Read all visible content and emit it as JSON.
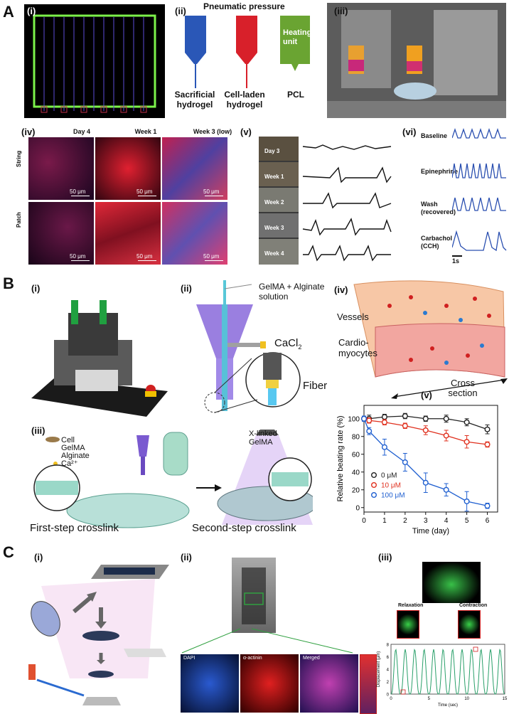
{
  "panel_A": {
    "letter": "A",
    "sub_i": "(i)",
    "sub_ii": "(ii)",
    "sub_iii": "(iii)",
    "sub_iv": "(iv)",
    "sub_v": "(v)",
    "sub_vi": "(vi)",
    "ii_title": "Pneumatic pressure",
    "ii_nozzles": [
      "Sacrificial hydrogel",
      "Cell-laden hydrogel"
    ],
    "ii_heating": "Heating unit",
    "ii_pcl": "PCL",
    "iv_cols": [
      "Day 4",
      "Week 1",
      "Week 3 (low)"
    ],
    "iv_rows": [
      "String",
      "Patch"
    ],
    "iv_scale": "50 μm",
    "v_rows": [
      "Day 3",
      "Week 1",
      "Week 2",
      "Week 3",
      "Week 4"
    ],
    "vi_rows": [
      "Baseline",
      "Epinephrine",
      "Wash (recovered)",
      "Carbachol (CCH)"
    ],
    "vi_scale": "1s"
  },
  "panel_B": {
    "letter": "B",
    "sub_i": "(i)",
    "sub_ii": "(ii)",
    "sub_iii": "(iii)",
    "sub_iv": "(iv)",
    "sub_v": "(v)",
    "ii_solution": "GelMA + Alginate solution",
    "ii_cacl2": "CaCl",
    "ii_cacl2_sub": "2",
    "ii_fiber": "Fiber",
    "iii_legend": [
      "Cell",
      "GelMA",
      "Alginate",
      "Ca²⁺"
    ],
    "iii_xlinked": "X-linked GelMA",
    "iii_step1": "First-step crosslink",
    "iii_step2": "Second-step crosslink",
    "iv_vessels": "Vessels",
    "iv_cardio": "Cardio- myocytes",
    "iv_cross": "Cross section"
  },
  "panel_C": {
    "letter": "C",
    "sub_i": "(i)",
    "sub_ii": "(ii)",
    "sub_iii": "(iii)",
    "ii_channels": [
      "DAPI",
      "α-actinin",
      "Merged"
    ],
    "iii_relax": "Relaxation",
    "iii_contract": "Contraction",
    "iii_ylabel": "Displacement (μm)",
    "iii_xlabel": "Time (sec)",
    "iii_yticks": [
      "0",
      "2",
      "4",
      "6",
      "8"
    ],
    "iii_xticks": [
      "0",
      "5",
      "10",
      "15"
    ]
  },
  "chart_data": {
    "type": "line",
    "title": "",
    "xlabel": "Time (day)",
    "ylabel": "Relative beating rate (%)",
    "xlim": [
      0,
      6.5
    ],
    "ylim": [
      -5,
      115
    ],
    "xticks": [
      0,
      1,
      2,
      3,
      4,
      5,
      6
    ],
    "yticks": [
      0,
      20,
      40,
      60,
      80,
      100
    ],
    "legend_position": "bottom-left",
    "x": [
      0,
      0.25,
      1,
      2,
      3,
      4,
      5,
      6
    ],
    "series": [
      {
        "name": "0 μM",
        "color": "#222222",
        "values": [
          100,
          100,
          102,
          103,
          100,
          100,
          96,
          88
        ],
        "errors": [
          3,
          4,
          3,
          3,
          3,
          4,
          4,
          5
        ]
      },
      {
        "name": "10 μM",
        "color": "#e0301e",
        "values": [
          100,
          98,
          96,
          92,
          87,
          81,
          74,
          71
        ],
        "errors": [
          3,
          3,
          3,
          3,
          5,
          6,
          7,
          3
        ]
      },
      {
        "name": "100 μM",
        "color": "#1f5fd0",
        "values": [
          100,
          86,
          68,
          51,
          28,
          20,
          7,
          2
        ],
        "errors": [
          3,
          4,
          9,
          10,
          11,
          7,
          11,
          3
        ]
      }
    ]
  }
}
